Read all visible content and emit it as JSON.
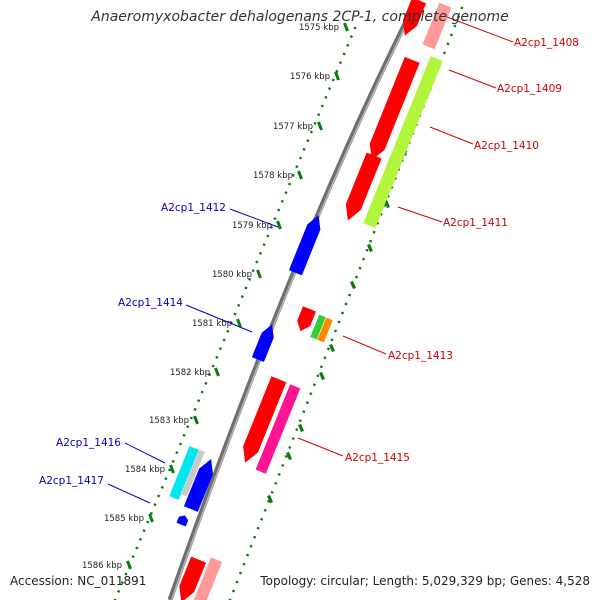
{
  "title": "Anaeromyxobacter dehalogenans 2CP-1, complete genome",
  "footer": {
    "accession": "Accession: NC_011891",
    "topology": "Topology: circular; Length: 5,029,329 bp; Genes: 4,528"
  },
  "colors": {
    "backbone": "#8a8a8a",
    "tick": "#0a7a0a",
    "forward_label": "#cc0000",
    "reverse_label": "#0000bb",
    "red": "#ff0000",
    "pink": "#ff9a9a",
    "lime": "#b2f53c",
    "blue": "#0000ff",
    "cyan": "#00e5ee",
    "grey": "#c8c8c8",
    "green": "#33cc33",
    "orange": "#ff8800",
    "magenta": "#ff1493"
  },
  "kbp_labels": [
    "1575 kbp",
    "1576 kbp",
    "1577 kbp",
    "1578 kbp",
    "1579 kbp",
    "1580 kbp",
    "1581 kbp",
    "1582 kbp",
    "1583 kbp",
    "1584 kbp",
    "1585 kbp",
    "1586 kbp"
  ],
  "forward_genes": [
    "A2cp1_1408",
    "A2cp1_1409",
    "A2cp1_1410",
    "A2cp1_1411",
    "A2cp1_1413",
    "A2cp1_1415"
  ],
  "reverse_genes": [
    "A2cp1_1412",
    "A2cp1_1414",
    "A2cp1_1416",
    "A2cp1_1417"
  ]
}
